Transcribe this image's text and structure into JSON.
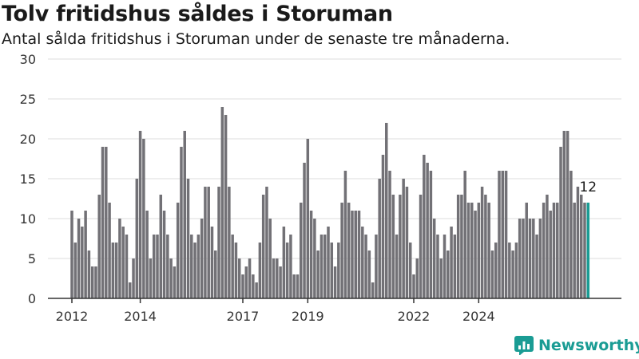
{
  "title": "Tolv fritidshus såldes i Storuman",
  "subtitle": "Antal sålda fritidshus i Storuman under de senaste tre månaderna.",
  "brand": {
    "name": "Newsworthy",
    "color": "#1a9c94"
  },
  "colors": {
    "bar": "#727176",
    "highlight": "#1a9c94",
    "grid": "#dddddd",
    "axis": "#333333",
    "text": "#333333"
  },
  "chart_data": {
    "type": "bar",
    "title": "Tolv fritidshus såldes i Storuman",
    "subtitle": "Antal sålda fritidshus i Storuman under de senaste tre månaderna.",
    "xlabel": "",
    "ylabel": "",
    "ylim": [
      0,
      30
    ],
    "yticks": [
      0,
      5,
      10,
      15,
      20,
      25,
      30
    ],
    "xticks": [
      {
        "label": "2012",
        "index": 0
      },
      {
        "label": "2014",
        "index": 20
      },
      {
        "label": "2017",
        "index": 50
      },
      {
        "label": "2019",
        "index": 69
      },
      {
        "label": "2022",
        "index": 100
      },
      {
        "label": "2024",
        "index": 119
      }
    ],
    "grid": true,
    "values": [
      11,
      7,
      10,
      9,
      11,
      6,
      4,
      4,
      13,
      19,
      19,
      12,
      7,
      7,
      10,
      9,
      8,
      2,
      5,
      15,
      21,
      20,
      11,
      5,
      8,
      8,
      13,
      11,
      8,
      5,
      4,
      12,
      19,
      21,
      15,
      8,
      7,
      8,
      10,
      14,
      14,
      9,
      6,
      14,
      24,
      23,
      14,
      8,
      7,
      5,
      3,
      4,
      5,
      3,
      2,
      7,
      13,
      14,
      10,
      5,
      5,
      4,
      9,
      7,
      8,
      3,
      3,
      12,
      17,
      20,
      11,
      10,
      6,
      8,
      8,
      9,
      7,
      4,
      7,
      12,
      16,
      12,
      11,
      11,
      11,
      9,
      8,
      6,
      2,
      8,
      15,
      18,
      22,
      16,
      13,
      8,
      13,
      15,
      14,
      7,
      3,
      5,
      13,
      18,
      17,
      16,
      10,
      8,
      5,
      8,
      6,
      9,
      8,
      13,
      13,
      16,
      12,
      12,
      11,
      12,
      14,
      13,
      12,
      6,
      7,
      16,
      16,
      16,
      7,
      6,
      7,
      10,
      10,
      12,
      10,
      10,
      8,
      10,
      12,
      13,
      11,
      12,
      12,
      19,
      21,
      21,
      16,
      12,
      14,
      13,
      12,
      12
    ],
    "highlight_last": true,
    "annotations": [
      {
        "text": "12",
        "target": "last-bar"
      }
    ]
  }
}
